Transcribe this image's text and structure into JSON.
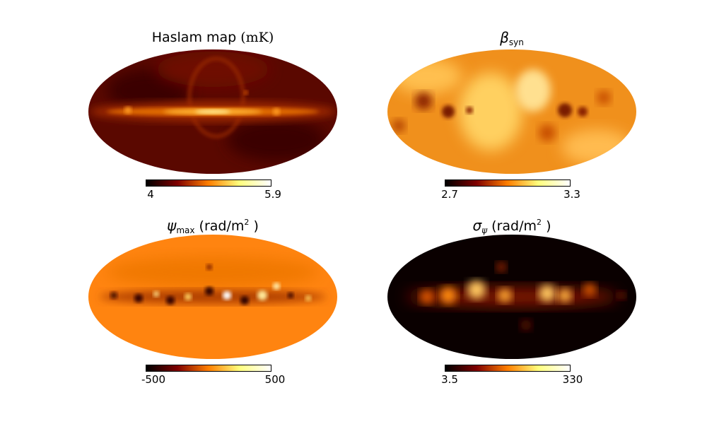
{
  "colormap": {
    "name": "afmhot",
    "stops": [
      "#000000",
      "#7f0000",
      "#ff7f00",
      "#ffff7f",
      "#ffffff"
    ]
  },
  "chart_data": [
    {
      "type": "heatmap",
      "projection": "mollweide",
      "title_text": "Haslam map",
      "title_math": "(mK)",
      "colorbar": {
        "min_label": "4",
        "max_label": "5.9",
        "range": [
          4,
          5.9
        ]
      }
    },
    {
      "type": "heatmap",
      "projection": "mollweide",
      "title_symbol": "β",
      "title_sub": "syn",
      "colorbar": {
        "min_label": "2.7",
        "max_label": "3.3",
        "range": [
          2.7,
          3.3
        ]
      }
    },
    {
      "type": "heatmap",
      "projection": "mollweide",
      "title_symbol": "ψ",
      "title_sub": "max",
      "title_unit_pre": "(rad/m",
      "title_unit_sup": "2",
      "title_unit_post": ")",
      "colorbar": {
        "min_label": "-500",
        "max_label": "500",
        "range": [
          -500,
          500
        ]
      }
    },
    {
      "type": "heatmap",
      "projection": "mollweide",
      "title_symbol": "σ",
      "title_sub": "ψ",
      "title_unit_pre": "(rad/m",
      "title_unit_sup": "2",
      "title_unit_post": ")",
      "colorbar": {
        "min_label": "3.5",
        "max_label": "330",
        "range": [
          3.5,
          330
        ]
      }
    }
  ]
}
